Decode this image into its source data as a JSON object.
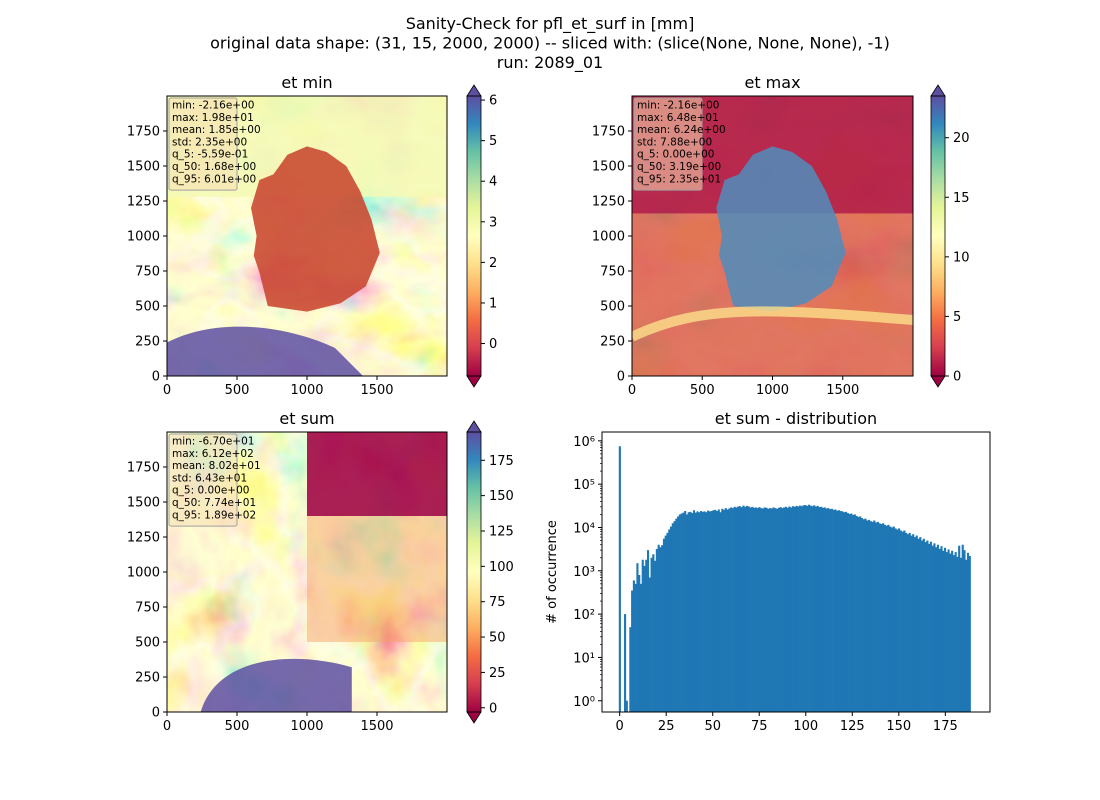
{
  "figure": {
    "title_lines": [
      "Sanity-Check for pfl_et_surf in [mm]",
      "original data shape: (31, 15, 2000, 2000) -- sliced with: (slice(None, None, None), -1)",
      "run: 2089_01"
    ]
  },
  "colors": {
    "cmap_spectral": [
      "#9e0142",
      "#d53e4f",
      "#f46d43",
      "#fdae61",
      "#fee08b",
      "#ffffbf",
      "#e6f598",
      "#abdda4",
      "#66c2a5",
      "#3288bd",
      "#5e4fa2"
    ],
    "hist_bar": "#1f77b4",
    "stats_box": "#f5deb3"
  },
  "chart_data": [
    {
      "type": "heatmap",
      "title": "et min",
      "xticks": [
        "0",
        "500",
        "1000",
        "1500"
      ],
      "yticks": [
        "0",
        "250",
        "500",
        "750",
        "1000",
        "1250",
        "1500",
        "1750"
      ],
      "xlim": [
        0,
        2000
      ],
      "ylim": [
        0,
        2000
      ],
      "colorbar": {
        "range": [
          -0.8,
          6.1
        ],
        "ticks": [
          "0",
          "1",
          "2",
          "3",
          "4",
          "5",
          "6"
        ],
        "tick_values": [
          0,
          1,
          2,
          3,
          4,
          5,
          6
        ],
        "extend": "both"
      },
      "stats": [
        "min: -2.16e+00",
        "max: 1.98e+01",
        "mean: 1.85e+00",
        "std: 2.35e+00",
        "q_5: -5.59e-01",
        "q_50: 1.68e+00",
        "q_95: 6.01e+00"
      ]
    },
    {
      "type": "heatmap",
      "title": "et max",
      "xticks": [
        "0",
        "500",
        "1000",
        "1500"
      ],
      "yticks": [
        "0",
        "250",
        "500",
        "750",
        "1000",
        "1250",
        "1500",
        "1750"
      ],
      "xlim": [
        0,
        2000
      ],
      "ylim": [
        0,
        2000
      ],
      "colorbar": {
        "range": [
          0,
          23.5
        ],
        "ticks": [
          "0",
          "5",
          "10",
          "15",
          "20"
        ],
        "tick_values": [
          0,
          5,
          10,
          15,
          20
        ],
        "extend": "both"
      },
      "stats": [
        "min: -2.16e+00",
        "max: 6.48e+01",
        "mean: 6.24e+00",
        "std: 7.88e+00",
        "q_5: 0.00e+00",
        "q_50: 3.19e+00",
        "q_95: 2.35e+01"
      ]
    },
    {
      "type": "heatmap",
      "title": "et sum",
      "xticks": [
        "0",
        "500",
        "1000",
        "1500"
      ],
      "yticks": [
        "0",
        "250",
        "500",
        "750",
        "1000",
        "1250",
        "1500",
        "1750"
      ],
      "xlim": [
        0,
        2000
      ],
      "ylim": [
        0,
        2000
      ],
      "colorbar": {
        "range": [
          -3,
          195
        ],
        "ticks": [
          "0",
          "25",
          "50",
          "75",
          "100",
          "125",
          "150",
          "175"
        ],
        "tick_values": [
          0,
          25,
          50,
          75,
          100,
          125,
          150,
          175
        ],
        "extend": "both"
      },
      "stats": [
        "min: -6.70e+01",
        "max: 6.12e+02",
        "mean: 8.02e+01",
        "std: 6.43e+01",
        "q_5: 0.00e+00",
        "q_50: 7.74e+01",
        "q_95: 1.89e+02"
      ]
    },
    {
      "type": "bar",
      "title": "et sum - distribution",
      "ylabel": "# of occurrence",
      "log_y": true,
      "xlim": [
        -9.5,
        199
      ],
      "ylim": [
        0.55,
        1600000
      ],
      "xticks": [
        "0",
        "25",
        "50",
        "75",
        "100",
        "125",
        "150",
        "175"
      ],
      "xtick_values": [
        0,
        25,
        50,
        75,
        100,
        125,
        150,
        175
      ],
      "yticks": [
        "10⁰",
        "10¹",
        "10²",
        "10³",
        "10⁴",
        "10⁵",
        "10⁶"
      ],
      "ytick_values": [
        1,
        10,
        100,
        1000,
        10000,
        100000,
        1000000
      ],
      "bin_width": 0.95,
      "bins": [
        {
          "x": 0,
          "y": 750000
        },
        {
          "x": 2.8,
          "y": 100
        },
        {
          "x": 3.75,
          "y": 1
        },
        {
          "x": 5.65,
          "y": 50
        },
        {
          "x": 6.6,
          "y": 350
        },
        {
          "x": 7.55,
          "y": 600
        },
        {
          "x": 8.5,
          "y": 500
        },
        {
          "x": 9.45,
          "y": 1500
        },
        {
          "x": 10.4,
          "y": 800
        },
        {
          "x": 11.35,
          "y": 500
        },
        {
          "x": 12.3,
          "y": 1800
        },
        {
          "x": 13.25,
          "y": 1300
        },
        {
          "x": 14.2,
          "y": 1800
        },
        {
          "x": 15.15,
          "y": 3000
        },
        {
          "x": 16.1,
          "y": 700
        },
        {
          "x": 17.05,
          "y": 2000
        },
        {
          "x": 18,
          "y": 2400
        },
        {
          "x": 18.95,
          "y": 1700
        },
        {
          "x": 19.9,
          "y": 3200
        },
        {
          "x": 20.85,
          "y": 4000
        },
        {
          "x": 21.8,
          "y": 3500
        },
        {
          "x": 22.75,
          "y": 3900
        },
        {
          "x": 23.7,
          "y": 5500
        },
        {
          "x": 24.65,
          "y": 6500
        },
        {
          "x": 25.6,
          "y": 7500
        },
        {
          "x": 26.55,
          "y": 9000
        },
        {
          "x": 27.5,
          "y": 10500
        },
        {
          "x": 28.45,
          "y": 12500
        },
        {
          "x": 29.4,
          "y": 14000
        },
        {
          "x": 30.35,
          "y": 16000
        },
        {
          "x": 31.3,
          "y": 18000
        },
        {
          "x": 32.25,
          "y": 20000
        },
        {
          "x": 33.2,
          "y": 21000
        },
        {
          "x": 34.15,
          "y": 22000
        },
        {
          "x": 35.1,
          "y": 24000
        },
        {
          "x": 36.05,
          "y": 20000
        },
        {
          "x": 37,
          "y": 22500
        },
        {
          "x": 37.95,
          "y": 23000
        },
        {
          "x": 38.9,
          "y": 21500
        },
        {
          "x": 39.85,
          "y": 25000
        },
        {
          "x": 40.8,
          "y": 22000
        },
        {
          "x": 41.75,
          "y": 23500
        },
        {
          "x": 42.7,
          "y": 22500
        },
        {
          "x": 43.65,
          "y": 24000
        },
        {
          "x": 44.6,
          "y": 23000
        },
        {
          "x": 45.55,
          "y": 23500
        },
        {
          "x": 46.5,
          "y": 22500
        },
        {
          "x": 47.45,
          "y": 24500
        },
        {
          "x": 48.4,
          "y": 23500
        },
        {
          "x": 49.35,
          "y": 24000
        },
        {
          "x": 50.3,
          "y": 25000
        },
        {
          "x": 51.25,
          "y": 25500
        },
        {
          "x": 52.2,
          "y": 24000
        },
        {
          "x": 53.15,
          "y": 26000
        },
        {
          "x": 54.1,
          "y": 22500
        },
        {
          "x": 55.05,
          "y": 27000
        },
        {
          "x": 56,
          "y": 25500
        },
        {
          "x": 56.95,
          "y": 28000
        },
        {
          "x": 57.9,
          "y": 26000
        },
        {
          "x": 58.85,
          "y": 27500
        },
        {
          "x": 59.8,
          "y": 29000
        },
        {
          "x": 60.75,
          "y": 28000
        },
        {
          "x": 61.7,
          "y": 30000
        },
        {
          "x": 62.65,
          "y": 29000
        },
        {
          "x": 63.6,
          "y": 30500
        },
        {
          "x": 64.55,
          "y": 31000
        },
        {
          "x": 65.5,
          "y": 29500
        },
        {
          "x": 66.45,
          "y": 32000
        },
        {
          "x": 67.4,
          "y": 30000
        },
        {
          "x": 68.35,
          "y": 31500
        },
        {
          "x": 69.3,
          "y": 30500
        },
        {
          "x": 70.25,
          "y": 29000
        },
        {
          "x": 71.2,
          "y": 30000
        },
        {
          "x": 72.15,
          "y": 28500
        },
        {
          "x": 73.1,
          "y": 29000
        },
        {
          "x": 74.05,
          "y": 28000
        },
        {
          "x": 75,
          "y": 29500
        },
        {
          "x": 75.95,
          "y": 28000
        },
        {
          "x": 76.9,
          "y": 27500
        },
        {
          "x": 77.85,
          "y": 29000
        },
        {
          "x": 78.8,
          "y": 28500
        },
        {
          "x": 79.75,
          "y": 27000
        },
        {
          "x": 80.7,
          "y": 28000
        },
        {
          "x": 81.65,
          "y": 27500
        },
        {
          "x": 82.6,
          "y": 29000
        },
        {
          "x": 83.55,
          "y": 28000
        },
        {
          "x": 84.5,
          "y": 27000
        },
        {
          "x": 85.45,
          "y": 28500
        },
        {
          "x": 86.4,
          "y": 29500
        },
        {
          "x": 87.35,
          "y": 28000
        },
        {
          "x": 88.3,
          "y": 29000
        },
        {
          "x": 89.25,
          "y": 30000
        },
        {
          "x": 90.2,
          "y": 28500
        },
        {
          "x": 91.15,
          "y": 30500
        },
        {
          "x": 92.1,
          "y": 29000
        },
        {
          "x": 93.05,
          "y": 31000
        },
        {
          "x": 94,
          "y": 30000
        },
        {
          "x": 94.95,
          "y": 31500
        },
        {
          "x": 95.9,
          "y": 30500
        },
        {
          "x": 96.85,
          "y": 32000
        },
        {
          "x": 97.8,
          "y": 31000
        },
        {
          "x": 98.75,
          "y": 32500
        },
        {
          "x": 99.7,
          "y": 33000
        },
        {
          "x": 100.65,
          "y": 31500
        },
        {
          "x": 101.6,
          "y": 33500
        },
        {
          "x": 102.55,
          "y": 32000
        },
        {
          "x": 103.5,
          "y": 31000
        },
        {
          "x": 104.45,
          "y": 32500
        },
        {
          "x": 105.4,
          "y": 30500
        },
        {
          "x": 106.35,
          "y": 31500
        },
        {
          "x": 107.3,
          "y": 29500
        },
        {
          "x": 108.25,
          "y": 30000
        },
        {
          "x": 109.2,
          "y": 28500
        },
        {
          "x": 110.15,
          "y": 29000
        },
        {
          "x": 111.1,
          "y": 27500
        },
        {
          "x": 112.05,
          "y": 28000
        },
        {
          "x": 113,
          "y": 26500
        },
        {
          "x": 113.95,
          "y": 27000
        },
        {
          "x": 114.9,
          "y": 25500
        },
        {
          "x": 115.85,
          "y": 26000
        },
        {
          "x": 116.8,
          "y": 24500
        },
        {
          "x": 117.75,
          "y": 25000
        },
        {
          "x": 118.7,
          "y": 24000
        },
        {
          "x": 119.65,
          "y": 23500
        },
        {
          "x": 120.6,
          "y": 22500
        },
        {
          "x": 121.55,
          "y": 23000
        },
        {
          "x": 122.5,
          "y": 21500
        },
        {
          "x": 123.45,
          "y": 20500
        },
        {
          "x": 124.4,
          "y": 21000
        },
        {
          "x": 125.35,
          "y": 19500
        },
        {
          "x": 126.3,
          "y": 20000
        },
        {
          "x": 127.25,
          "y": 18500
        },
        {
          "x": 128.2,
          "y": 17500
        },
        {
          "x": 129.15,
          "y": 18000
        },
        {
          "x": 130.1,
          "y": 16500
        },
        {
          "x": 131.05,
          "y": 15500
        },
        {
          "x": 132,
          "y": 16000
        },
        {
          "x": 132.95,
          "y": 14500
        },
        {
          "x": 133.9,
          "y": 15000
        },
        {
          "x": 134.85,
          "y": 14000
        },
        {
          "x": 135.8,
          "y": 13500
        },
        {
          "x": 136.75,
          "y": 14500
        },
        {
          "x": 137.7,
          "y": 13000
        },
        {
          "x": 138.65,
          "y": 13500
        },
        {
          "x": 139.6,
          "y": 12500
        },
        {
          "x": 140.55,
          "y": 12000
        },
        {
          "x": 141.5,
          "y": 12500
        },
        {
          "x": 142.45,
          "y": 11500
        },
        {
          "x": 143.4,
          "y": 11000
        },
        {
          "x": 144.35,
          "y": 11500
        },
        {
          "x": 145.3,
          "y": 10500
        },
        {
          "x": 146.25,
          "y": 10000
        },
        {
          "x": 147.2,
          "y": 10500
        },
        {
          "x": 148.15,
          "y": 9500
        },
        {
          "x": 149.1,
          "y": 9000
        },
        {
          "x": 150.05,
          "y": 9500
        },
        {
          "x": 151,
          "y": 8500
        },
        {
          "x": 151.95,
          "y": 8000
        },
        {
          "x": 152.9,
          "y": 8500
        },
        {
          "x": 153.85,
          "y": 7500
        },
        {
          "x": 154.8,
          "y": 7000
        },
        {
          "x": 155.75,
          "y": 7500
        },
        {
          "x": 156.7,
          "y": 6500
        },
        {
          "x": 157.65,
          "y": 7000
        },
        {
          "x": 158.6,
          "y": 6000
        },
        {
          "x": 159.55,
          "y": 6500
        },
        {
          "x": 160.5,
          "y": 5500
        },
        {
          "x": 161.45,
          "y": 6000
        },
        {
          "x": 162.4,
          "y": 5000
        },
        {
          "x": 163.35,
          "y": 5500
        },
        {
          "x": 164.3,
          "y": 4600
        },
        {
          "x": 165.25,
          "y": 5000
        },
        {
          "x": 166.2,
          "y": 4200
        },
        {
          "x": 167.15,
          "y": 4700
        },
        {
          "x": 168.1,
          "y": 3800
        },
        {
          "x": 169.05,
          "y": 4300
        },
        {
          "x": 170,
          "y": 3500
        },
        {
          "x": 170.95,
          "y": 4000
        },
        {
          "x": 171.9,
          "y": 3200
        },
        {
          "x": 172.85,
          "y": 3700
        },
        {
          "x": 173.8,
          "y": 2900
        },
        {
          "x": 174.75,
          "y": 3400
        },
        {
          "x": 175.7,
          "y": 2700
        },
        {
          "x": 176.65,
          "y": 3100
        },
        {
          "x": 177.6,
          "y": 2500
        },
        {
          "x": 178.55,
          "y": 2900
        },
        {
          "x": 179.5,
          "y": 2300
        },
        {
          "x": 180.45,
          "y": 2700
        },
        {
          "x": 181.4,
          "y": 2100
        },
        {
          "x": 182.35,
          "y": 3800
        },
        {
          "x": 183.3,
          "y": 2000
        },
        {
          "x": 184.25,
          "y": 4000
        },
        {
          "x": 185.2,
          "y": 3000
        },
        {
          "x": 186.15,
          "y": 1800
        },
        {
          "x": 187.1,
          "y": 2600
        },
        {
          "x": 188.05,
          "y": 2200
        }
      ]
    }
  ]
}
